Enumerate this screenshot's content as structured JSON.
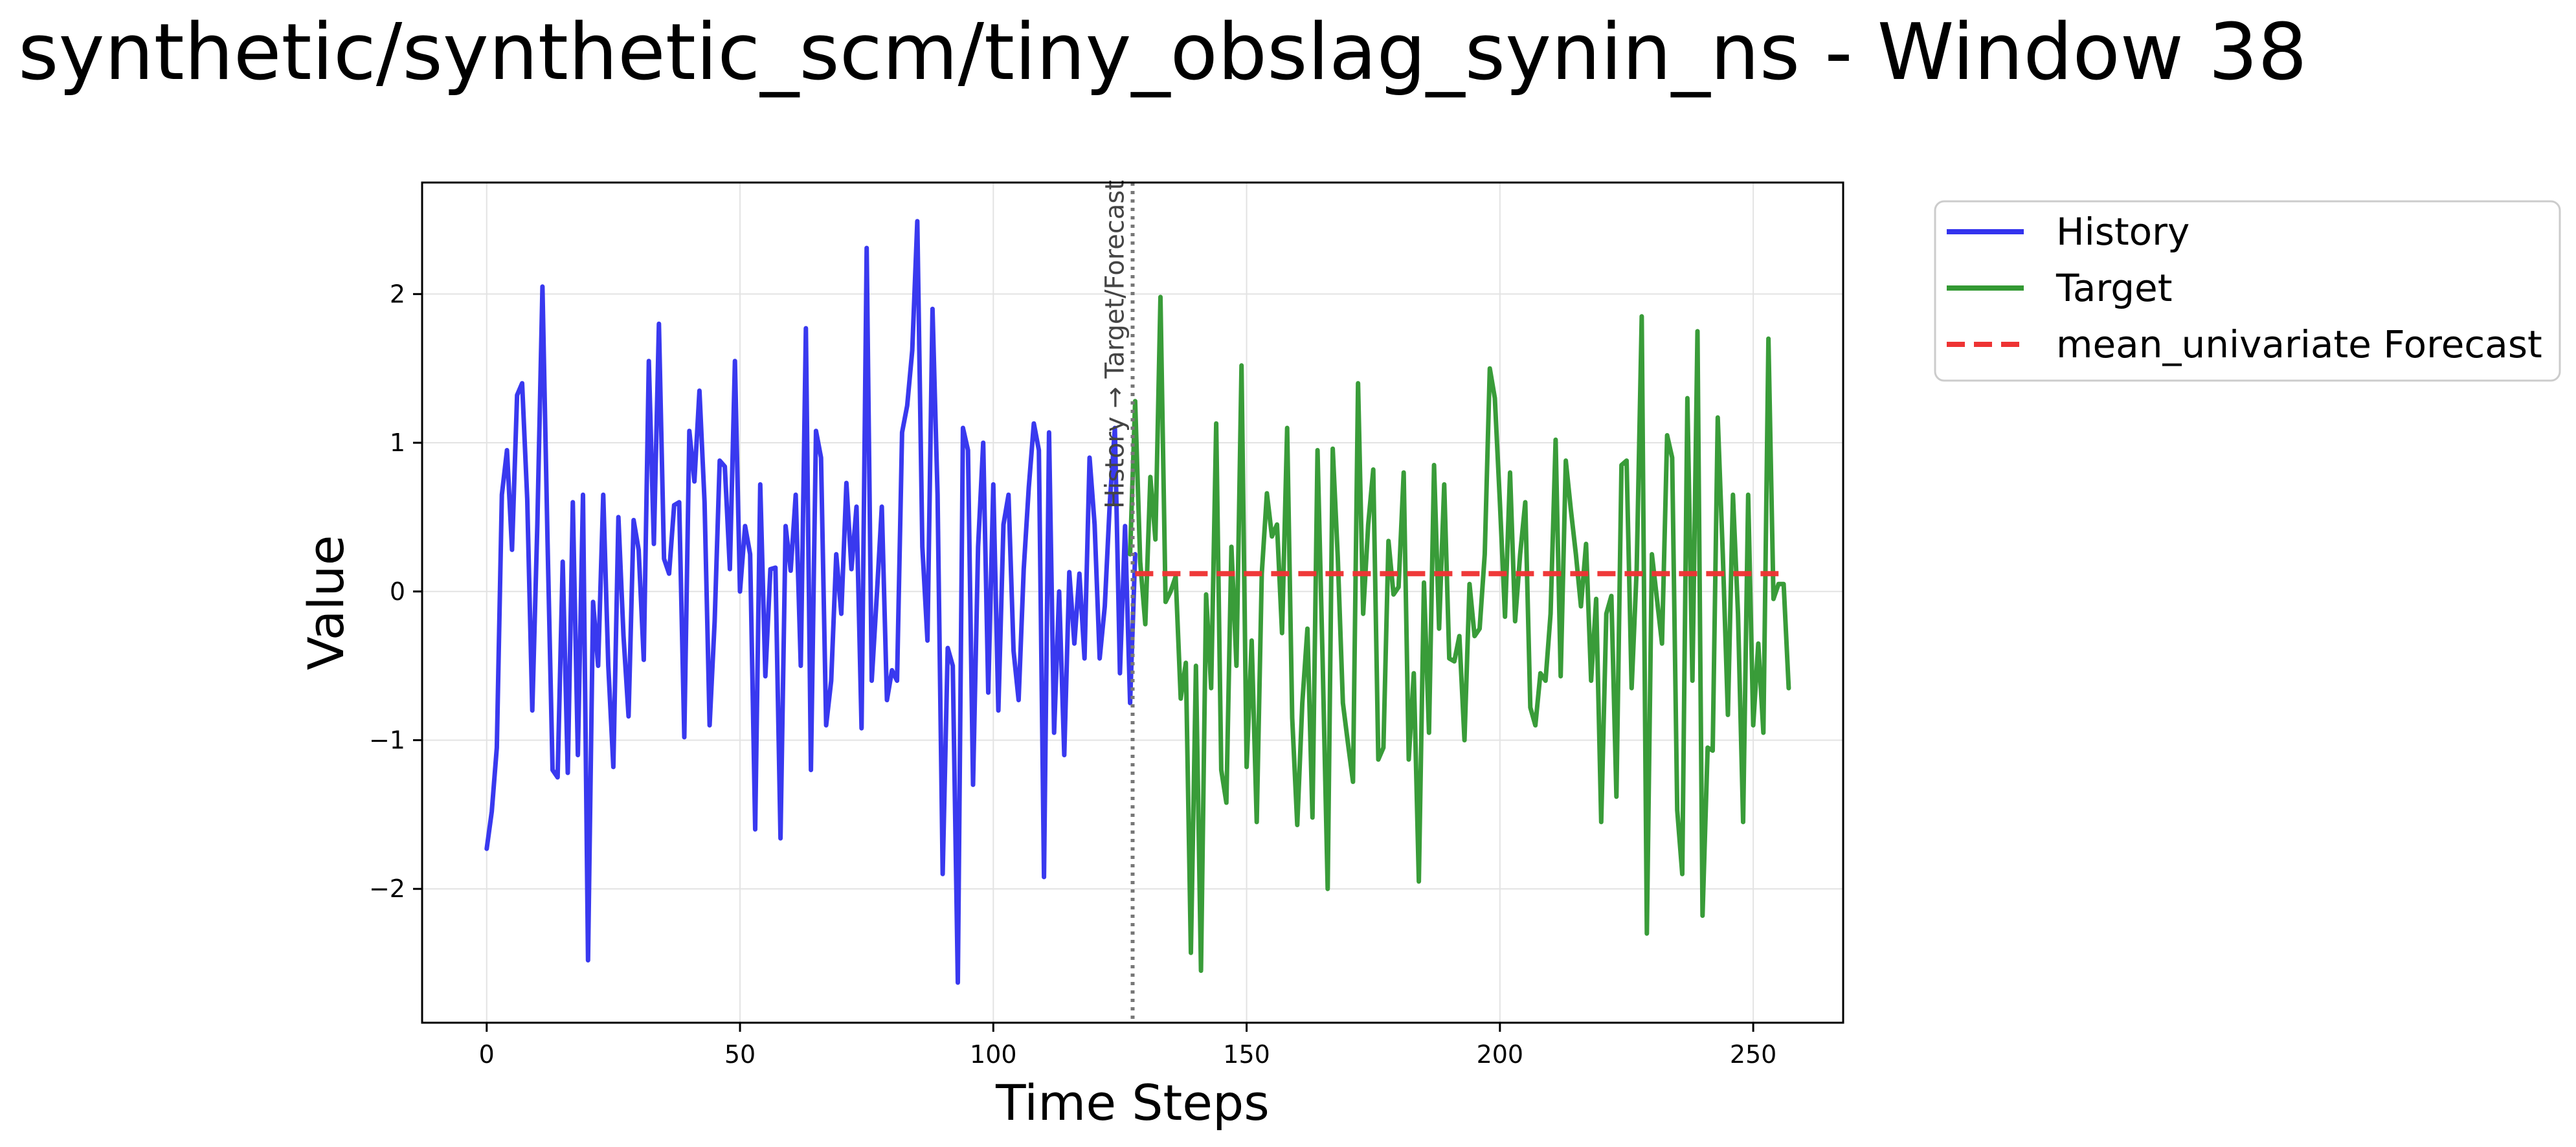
{
  "title": "synthetic/synthetic_scm/tiny_obslag_synin_ns - Window 38",
  "chart_data": {
    "type": "line",
    "xlabel": "Time Steps",
    "ylabel": "Value",
    "xlim": [
      -12.75,
      267.75
    ],
    "ylim": [
      -2.9,
      2.75
    ],
    "xticks": [
      0,
      50,
      100,
      150,
      200,
      250
    ],
    "yticks": [
      -2,
      -1,
      0,
      1,
      2
    ],
    "grid": true,
    "legend_position": "outside-top-right",
    "split_annotation": {
      "x": 127.5,
      "text": "History → Target/Forecast"
    },
    "series": [
      {
        "name": "History",
        "color": "#3333ee",
        "style": "solid",
        "x_start": 0,
        "values": [
          -1.73,
          -1.48,
          -1.05,
          0.65,
          0.95,
          0.28,
          1.32,
          1.4,
          0.62,
          -0.8,
          0.45,
          2.05,
          0.35,
          -1.2,
          -1.25,
          0.2,
          -1.22,
          0.6,
          -1.1,
          0.65,
          -2.48,
          -0.07,
          -0.5,
          0.65,
          -0.5,
          -1.18,
          0.5,
          -0.3,
          -0.84,
          0.48,
          0.28,
          -0.46,
          1.55,
          0.32,
          1.8,
          0.22,
          0.12,
          0.58,
          0.6,
          -0.98,
          1.08,
          0.74,
          1.35,
          0.6,
          -0.9,
          -0.2,
          0.88,
          0.84,
          0.15,
          1.55,
          0.0,
          0.44,
          0.25,
          -1.6,
          0.72,
          -0.57,
          0.15,
          0.16,
          -1.66,
          0.44,
          0.14,
          0.65,
          -0.5,
          1.77,
          -1.2,
          1.08,
          0.9,
          -0.9,
          -0.6,
          0.25,
          -0.15,
          0.73,
          0.15,
          0.57,
          -0.92,
          2.31,
          -0.6,
          -0.03,
          0.57,
          -0.73,
          -0.53,
          -0.6,
          1.07,
          1.25,
          1.62,
          2.49,
          0.3,
          -0.33,
          1.9,
          0.65,
          -1.9,
          -0.38,
          -0.5,
          -2.63,
          1.1,
          0.95,
          -1.3,
          0.3,
          1.0,
          -0.68,
          0.72,
          -0.8,
          0.45,
          0.65,
          -0.4,
          -0.73,
          0.15,
          0.7,
          1.13,
          0.95,
          -1.92,
          1.07,
          -0.95,
          0.0,
          -1.1,
          0.13,
          -0.35,
          0.12,
          -0.45,
          0.9,
          0.45,
          -0.45,
          -0.1,
          0.6,
          1.1,
          -0.55,
          0.44,
          -0.75,
          0.25
        ]
      },
      {
        "name": "Target",
        "color": "#339933",
        "style": "solid",
        "x_start": 127,
        "values": [
          0.25,
          1.28,
          0.2,
          -0.22,
          0.77,
          0.35,
          1.98,
          -0.07,
          0.0,
          0.1,
          -0.72,
          -0.48,
          -2.43,
          -0.5,
          -2.55,
          -0.02,
          -0.65,
          1.13,
          -1.2,
          -1.42,
          0.3,
          -0.5,
          1.52,
          -1.18,
          -0.33,
          -1.55,
          0.12,
          0.66,
          0.37,
          0.45,
          -0.28,
          1.1,
          -0.85,
          -1.57,
          -0.75,
          -0.25,
          -1.52,
          0.95,
          -0.45,
          -2.0,
          0.96,
          0.23,
          -0.75,
          -1.02,
          -1.28,
          1.4,
          -0.15,
          0.45,
          0.82,
          -1.13,
          -1.05,
          0.34,
          -0.02,
          0.03,
          0.8,
          -1.13,
          -0.55,
          -1.95,
          0.06,
          -0.95,
          0.85,
          -0.25,
          0.72,
          -0.45,
          -0.47,
          -0.3,
          -1.0,
          0.05,
          -0.3,
          -0.25,
          0.25,
          1.5,
          1.3,
          0.6,
          -0.17,
          0.8,
          -0.2,
          0.25,
          0.6,
          -0.78,
          -0.9,
          -0.55,
          -0.6,
          -0.15,
          1.02,
          -0.57,
          0.88,
          0.55,
          0.25,
          -0.1,
          0.32,
          -0.6,
          -0.05,
          -1.55,
          -0.15,
          -0.03,
          -1.38,
          0.85,
          0.88,
          -0.65,
          0.15,
          1.85,
          -2.3,
          0.25,
          -0.05,
          -0.35,
          1.05,
          0.9,
          -1.47,
          -1.9,
          1.3,
          -0.6,
          1.75,
          -2.18,
          -1.05,
          -1.07,
          1.17,
          0.25,
          -0.83,
          0.65,
          -0.15,
          -1.55,
          0.65,
          -0.9,
          -0.35,
          -0.95,
          1.7,
          -0.05,
          0.05,
          0.05,
          -0.65
        ]
      },
      {
        "name": "mean_univariate Forecast",
        "color": "#ee3333",
        "style": "dashed",
        "x": [
          128,
          255
        ],
        "values": [
          0.12,
          0.12
        ]
      }
    ]
  }
}
